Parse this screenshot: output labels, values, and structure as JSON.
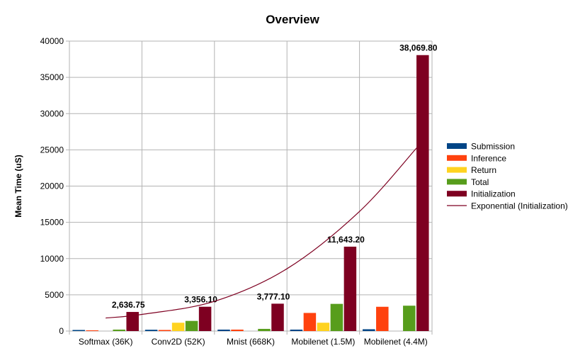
{
  "chart_data": {
    "type": "bar",
    "title": "Overview",
    "xlabel": "",
    "ylabel": "Mean Time (uS)",
    "ylim": [
      0,
      40000
    ],
    "yticks": [
      0,
      5000,
      10000,
      15000,
      20000,
      25000,
      30000,
      35000,
      40000
    ],
    "grid": true,
    "legend_position": "right",
    "categories": [
      "Softmax (36K)",
      "Conv2D (52K)",
      "Mnist (668K)",
      "Mobilenet (1.5M)",
      "Mobilenet (4.4M)"
    ],
    "series": [
      {
        "name": "Submission",
        "color": "#004586",
        "values": [
          150,
          180,
          200,
          200,
          250
        ]
      },
      {
        "name": "Inference",
        "color": "#ff420e",
        "values": [
          100,
          150,
          200,
          2500,
          3350
        ]
      },
      {
        "name": "Return",
        "color": "#ffd320",
        "values": [
          0,
          1150,
          0,
          1150,
          0
        ]
      },
      {
        "name": "Total",
        "color": "#579d1c",
        "values": [
          200,
          1400,
          300,
          3750,
          3500
        ]
      },
      {
        "name": "Initialization",
        "color": "#7e0021",
        "values": [
          2636.75,
          3356.1,
          3777.1,
          11643.2,
          38069.8
        ]
      }
    ],
    "data_labels": {
      "series": "Initialization",
      "texts": [
        "2,636.75",
        "3,356.10",
        "3,777.10",
        "11,643.20",
        "38,069.80"
      ]
    },
    "trendline": {
      "name": "Exponential (Initialization)",
      "color": "#7e0021",
      "type": "exponential",
      "points": [
        [
          0.5,
          1800
        ],
        [
          1,
          2300
        ],
        [
          2,
          4100
        ],
        [
          3,
          8600
        ],
        [
          4,
          16500
        ],
        [
          4.8,
          25400
        ]
      ]
    }
  }
}
